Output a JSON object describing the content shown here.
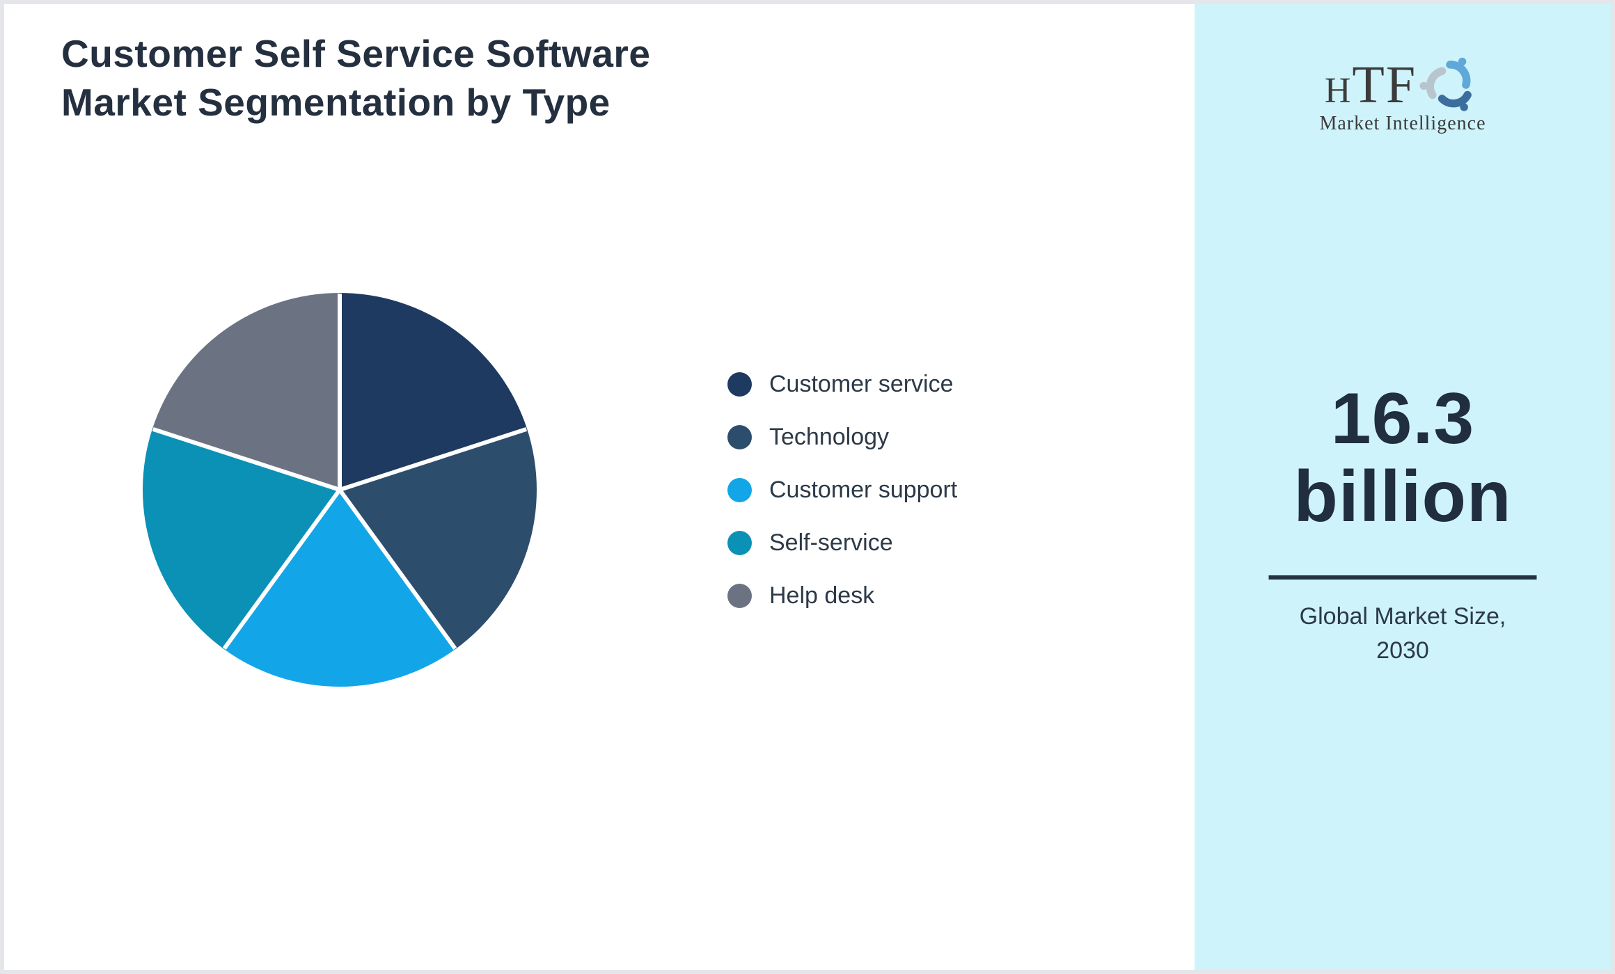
{
  "page": {
    "background": "#ffffff",
    "border_color": "#e4e6e9"
  },
  "header": {
    "title_lines": [
      "Customer Self Service Software",
      "Market Segmentation by Type"
    ],
    "title_color": "#242f3f"
  },
  "chart_data": {
    "type": "pie",
    "title": "Customer Self Service Software Market Segmentation by Type",
    "categories": [
      "Customer service",
      "Technology",
      "Customer support",
      "Self-service",
      "Help desk"
    ],
    "values": [
      20,
      20,
      20,
      20,
      20
    ],
    "colors": [
      "#1f3a60",
      "#2d4d6d",
      "#12a6e8",
      "#0a91b5",
      "#6b7383"
    ],
    "legend_position": "right",
    "start_angle_deg": 0,
    "direction": "clockwise",
    "slice_gap_color": "#ffffff"
  },
  "sidebar": {
    "background": "#cff3fb",
    "logo": {
      "brand_h": "H",
      "brand_tf": "TF",
      "subtitle": "Market Intelligence",
      "figure_colors": [
        "#5fa8d8",
        "#3c6e9d",
        "#b9c5ce"
      ]
    },
    "stat": {
      "value": "16.3",
      "unit": "billion",
      "caption_line1": "Global Market Size,",
      "caption_line2": "2030"
    }
  }
}
